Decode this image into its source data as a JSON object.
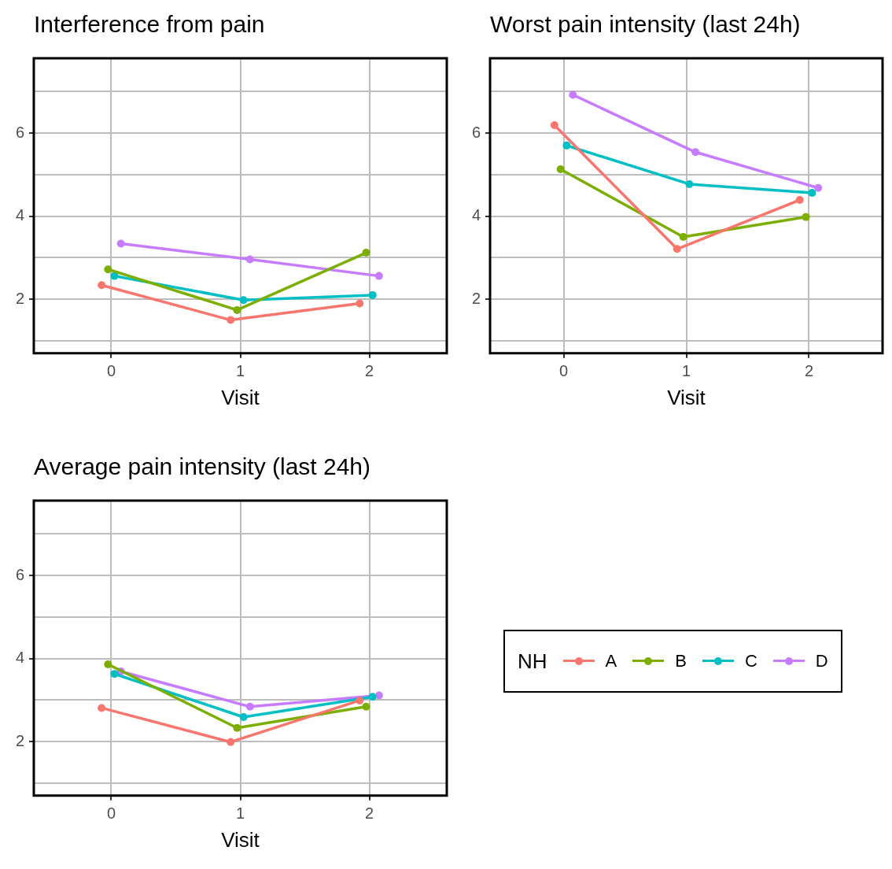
{
  "chart_data": [
    {
      "type": "line",
      "title": "Interference from pain",
      "xlabel": "Visit",
      "xlim": [
        -0.6,
        2.6
      ],
      "xticks": [
        0,
        1,
        2
      ],
      "ylim": [
        0.7,
        7.8
      ],
      "yticks": [
        {
          "value": 1,
          "label": null
        },
        2,
        {
          "value": 3,
          "label": null
        },
        4,
        {
          "value": 5,
          "label": null
        },
        6,
        {
          "value": 7,
          "label": null
        }
      ],
      "grid": true,
      "marker": "circle",
      "line_style": "solid",
      "legend": "bottom right",
      "legend_title": "NH",
      "series": [
        {
          "name": "A",
          "color": "#f8766d",
          "x": [
            -0.075,
            0.925,
            1.925
          ],
          "values": [
            2.34,
            1.5,
            1.9
          ]
        },
        {
          "name": "B",
          "color": "#7cae00",
          "x": [
            -0.025,
            0.975,
            1.975
          ],
          "values": [
            2.72,
            1.74,
            3.12
          ]
        },
        {
          "name": "C",
          "color": "#00bfc4",
          "x": [
            0.025,
            1.025,
            2.025
          ],
          "values": [
            2.56,
            1.98,
            2.1
          ]
        },
        {
          "name": "D",
          "color": "#c77cff",
          "x": [
            0.075,
            1.075,
            2.075
          ],
          "values": [
            3.34,
            2.96,
            2.56
          ]
        }
      ]
    },
    {
      "type": "line",
      "title": "Worst pain intensity (last 24h)",
      "xlabel": "Visit",
      "xlim": [
        -0.6,
        2.6
      ],
      "xticks": [
        0,
        1,
        2
      ],
      "ylim": [
        0.7,
        7.8
      ],
      "yticks": [
        {
          "value": 1,
          "label": null
        },
        2,
        {
          "value": 3,
          "label": null
        },
        4,
        {
          "value": 5,
          "label": null
        },
        6,
        {
          "value": 7,
          "label": null
        }
      ],
      "grid": true,
      "marker": "circle",
      "line_style": "solid",
      "series": [
        {
          "color": "#f8766d",
          "x": [
            -0.075,
            0.925,
            1.925
          ],
          "values": [
            6.19,
            3.21,
            4.39
          ]
        },
        {
          "color": "#7cae00",
          "x": [
            -0.025,
            0.975,
            1.975
          ],
          "values": [
            5.13,
            3.5,
            3.98
          ]
        },
        {
          "color": "#00bfc4",
          "x": [
            0.025,
            1.025,
            2.025
          ],
          "values": [
            5.7,
            4.77,
            4.56
          ]
        },
        {
          "color": "#c77cff",
          "x": [
            0.075,
            1.075,
            2.075
          ],
          "values": [
            6.92,
            5.54,
            4.68
          ]
        }
      ]
    },
    {
      "type": "line",
      "title": "Average pain intensity (last 24h)",
      "xlabel": "Visit",
      "xlim": [
        -0.6,
        2.6
      ],
      "xticks": [
        0,
        1,
        2
      ],
      "ylim": [
        0.7,
        7.8
      ],
      "yticks": [
        {
          "value": 1,
          "label": null
        },
        2,
        {
          "value": 3,
          "label": null
        },
        4,
        {
          "value": 5,
          "label": null
        },
        6,
        {
          "value": 7,
          "label": null
        }
      ],
      "grid": true,
      "marker": "circle",
      "line_style": "solid",
      "series": [
        {
          "color": "#f8766d",
          "x": [
            -0.075,
            0.925,
            1.925
          ],
          "values": [
            2.81,
            1.99,
            2.99
          ]
        },
        {
          "color": "#7cae00",
          "x": [
            -0.025,
            0.975,
            1.975
          ],
          "values": [
            3.86,
            2.33,
            2.84
          ]
        },
        {
          "color": "#00bfc4",
          "x": [
            0.025,
            1.025,
            2.025
          ],
          "values": [
            3.63,
            2.59,
            3.08
          ]
        },
        {
          "color": "#c77cff",
          "x": [
            0.075,
            1.075,
            2.075
          ],
          "values": [
            3.69,
            2.84,
            3.11
          ]
        }
      ]
    }
  ]
}
